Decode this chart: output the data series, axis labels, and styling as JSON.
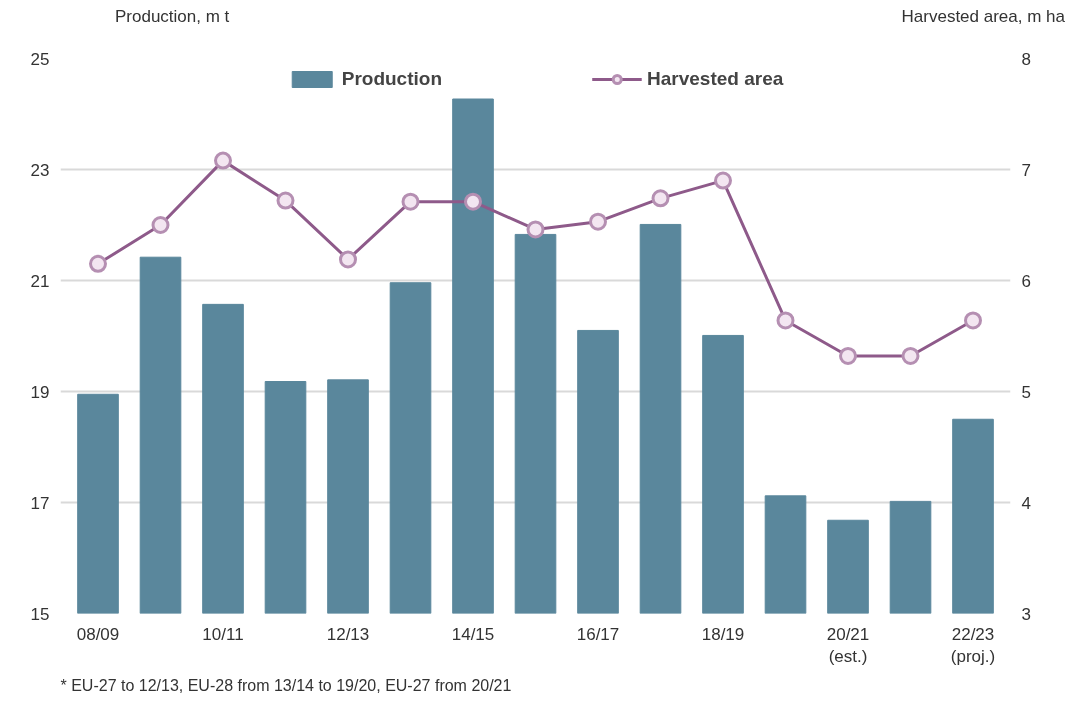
{
  "chart_data": {
    "type": "bar",
    "ylabel": "Production, m t",
    "y2label": "Harvested area, m ha",
    "categories": [
      "08/09",
      null,
      "10/11",
      null,
      "12/13",
      null,
      "14/15",
      null,
      "16/17",
      null,
      "18/19",
      null,
      "20/21\n(est.)",
      null,
      "22/23\n(proj.)"
    ],
    "series": [
      {
        "name": "Production",
        "color": "#5a879c",
        "values": [
          18.95,
          21.42,
          20.57,
          19.18,
          19.21,
          20.96,
          24.27,
          21.83,
          20.1,
          22.01,
          20.01,
          17.12,
          16.68,
          17.02,
          18.5
        ]
      },
      {
        "name": "Harvested area",
        "type": "line",
        "axis": "y2",
        "color": "#8e5a8a",
        "marker": "circle",
        "values": [
          6.15,
          6.5,
          7.08,
          6.72,
          6.19,
          6.71,
          6.71,
          6.46,
          6.53,
          6.74,
          6.9,
          5.64,
          5.32,
          5.32,
          5.64
        ]
      }
    ],
    "ylim": [
      15,
      25
    ],
    "yticks": [
      15,
      17,
      19,
      21,
      23,
      25
    ],
    "y2lim": [
      3,
      8
    ],
    "y2ticks": [
      3,
      4,
      5,
      6,
      7,
      8
    ],
    "grid": "y",
    "legend": "top",
    "annotations": [
      "* EU-27 to 12/13, EU-28 from 13/14 to 19/20, EU-27 from 20/21"
    ]
  }
}
